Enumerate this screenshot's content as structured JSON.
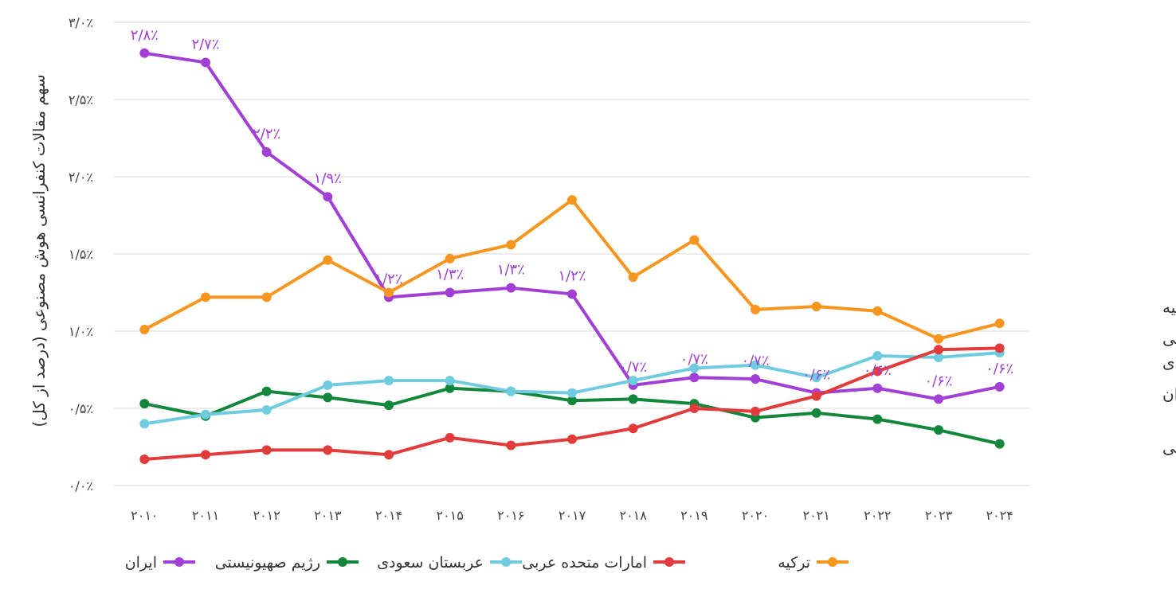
{
  "chart_data": {
    "type": "line",
    "ylabel": "سهم مقالات کنفرانسی هوش مصنوعی (درصد از کل)",
    "ylim": [
      0,
      3.0
    ],
    "y_ticks": [
      "۰/۰٪",
      "۰/۵٪",
      "۱/۰٪",
      "۱/۵٪",
      "۲/۰٪",
      "۲/۵٪",
      "۳/۰٪"
    ],
    "x": [
      "۲۰۱۰",
      "۲۰۱۱",
      "۲۰۱۲",
      "۲۰۱۳",
      "۲۰۱۴",
      "۲۰۱۵",
      "۲۰۱۶",
      "۲۰۱۷",
      "۲۰۱۸",
      "۲۰۱۹",
      "۲۰۲۰",
      "۲۰۲۱",
      "۲۰۲۲",
      "۲۰۲۳",
      "۲۰۲۴"
    ],
    "grid": true,
    "legend_position": "bottom",
    "series": [
      {
        "name": "ایران",
        "color": "#A23FD6",
        "values": [
          2.8,
          2.74,
          2.16,
          1.87,
          1.22,
          1.25,
          1.28,
          1.24,
          0.65,
          0.7,
          0.69,
          0.6,
          0.63,
          0.56,
          0.64
        ],
        "labels": [
          "۲/۸٪",
          "۲/۷٪",
          "۲/۲٪",
          "۱/۹٪",
          "۱/۲٪",
          "۱/۳٪",
          "۱/۳٪",
          "۱/۲٪",
          "۰/۷٪",
          "۰/۷٪",
          "۰/۷٪",
          "۰/۶٪",
          "۰/۶٪",
          "۰/۶٪",
          "۰/۶٪"
        ]
      },
      {
        "name": "رژیم صهیونیستی",
        "color": "#12873A",
        "values": [
          0.53,
          0.45,
          0.61,
          0.57,
          0.52,
          0.63,
          0.61,
          0.55,
          0.56,
          0.53,
          0.44,
          0.47,
          0.43,
          0.36,
          0.27
        ]
      },
      {
        "name": "عربستان سعودی",
        "color": "#6FCBE0",
        "values": [
          0.4,
          0.46,
          0.49,
          0.65,
          0.68,
          0.68,
          0.61,
          0.6,
          0.68,
          0.76,
          0.78,
          0.7,
          0.84,
          0.83,
          0.86
        ]
      },
      {
        "name": "امارات متحده عربی",
        "color": "#E23B3B",
        "values": [
          0.17,
          0.2,
          0.23,
          0.23,
          0.2,
          0.31,
          0.26,
          0.3,
          0.37,
          0.5,
          0.48,
          0.58,
          0.74,
          0.88,
          0.89
        ]
      },
      {
        "name": "ترکیه",
        "color": "#F7961F",
        "values": [
          1.01,
          1.22,
          1.22,
          1.46,
          1.25,
          1.47,
          1.56,
          1.85,
          1.35,
          1.59,
          1.14,
          1.16,
          1.13,
          0.95,
          1.05
        ]
      }
    ],
    "end_labels": [
      {
        "text": "ترکیه",
        "series": "ترکیه"
      },
      {
        "text": "امارات متحده عربی",
        "series": "امارات متحده عربی"
      },
      {
        "text": "عربستان سعودی",
        "series": "عربستان سعودی"
      },
      {
        "text": "ایران",
        "series": "ایران"
      },
      {
        "text": "رژیم صهیونیستی",
        "series": "رژیم صهیونیستی"
      }
    ]
  }
}
